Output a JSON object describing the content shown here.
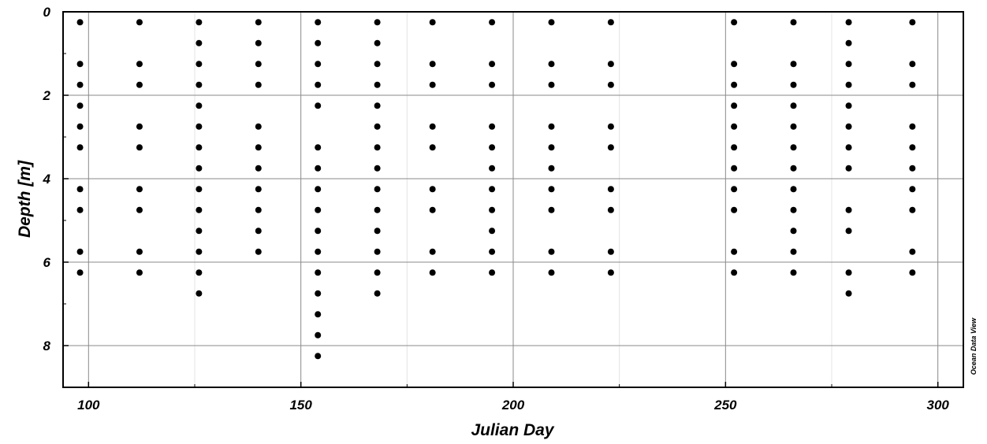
{
  "chart_data": {
    "type": "scatter",
    "title": "",
    "xlabel": "Julian Day",
    "ylabel": "Depth [m]",
    "xlim": [
      94,
      306
    ],
    "ylim": [
      0,
      9
    ],
    "y_inverted": true,
    "grid": true,
    "x_ticks": [
      100,
      150,
      200,
      250,
      300
    ],
    "x_tick_labels": [
      "100",
      "150",
      "200",
      "250",
      "300"
    ],
    "y_ticks": [
      0,
      2,
      4,
      6,
      8
    ],
    "y_tick_labels": [
      "0",
      "2",
      "4",
      "6",
      "8"
    ],
    "marker_color": "#000000",
    "stations": [
      {
        "x": 98,
        "depths": [
          0.25,
          1.25,
          1.75,
          2.25,
          2.75,
          3.25,
          4.25,
          4.75,
          5.75,
          6.25
        ]
      },
      {
        "x": 112,
        "depths": [
          0.25,
          1.25,
          1.75,
          2.75,
          3.25,
          4.25,
          4.75,
          5.75,
          6.25
        ]
      },
      {
        "x": 126,
        "depths": [
          0.25,
          0.75,
          1.25,
          1.75,
          2.25,
          2.75,
          3.25,
          3.75,
          4.25,
          4.75,
          5.25,
          5.75,
          6.25,
          6.75
        ]
      },
      {
        "x": 140,
        "depths": [
          0.25,
          0.75,
          1.25,
          1.75,
          2.75,
          3.25,
          3.75,
          4.25,
          4.75,
          5.25,
          5.75
        ]
      },
      {
        "x": 154,
        "depths": [
          0.25,
          0.75,
          1.25,
          1.75,
          2.25,
          3.25,
          3.75,
          4.25,
          4.75,
          5.25,
          5.75,
          6.25,
          6.75,
          7.25,
          7.75,
          8.25
        ]
      },
      {
        "x": 168,
        "depths": [
          0.25,
          0.75,
          1.25,
          1.75,
          2.25,
          2.75,
          3.25,
          3.75,
          4.25,
          4.75,
          5.25,
          5.75,
          6.25,
          6.75
        ]
      },
      {
        "x": 181,
        "depths": [
          0.25,
          1.25,
          1.75,
          2.75,
          3.25,
          4.25,
          4.75,
          5.75,
          6.25
        ]
      },
      {
        "x": 195,
        "depths": [
          0.25,
          1.25,
          1.75,
          2.75,
          3.25,
          3.75,
          4.25,
          4.75,
          5.25,
          5.75,
          6.25
        ]
      },
      {
        "x": 209,
        "depths": [
          0.25,
          1.25,
          1.75,
          2.75,
          3.25,
          3.75,
          4.25,
          4.75,
          5.75,
          6.25
        ]
      },
      {
        "x": 223,
        "depths": [
          0.25,
          1.25,
          1.75,
          2.75,
          3.25,
          4.25,
          4.75,
          5.75,
          6.25
        ]
      },
      {
        "x": 252,
        "depths": [
          0.25,
          1.25,
          1.75,
          2.25,
          2.75,
          3.25,
          3.75,
          4.25,
          4.75,
          5.75,
          6.25
        ]
      },
      {
        "x": 266,
        "depths": [
          0.25,
          1.25,
          1.75,
          2.25,
          2.75,
          3.25,
          3.75,
          4.25,
          4.75,
          5.25,
          5.75,
          6.25
        ]
      },
      {
        "x": 279,
        "depths": [
          0.25,
          0.75,
          1.25,
          1.75,
          2.25,
          2.75,
          3.25,
          3.75,
          4.75,
          5.25,
          6.25,
          6.75
        ]
      },
      {
        "x": 294,
        "depths": [
          0.25,
          1.25,
          1.75,
          2.75,
          3.25,
          3.75,
          4.25,
          4.75,
          5.75,
          6.25
        ]
      }
    ]
  },
  "watermark": "Ocean Data View"
}
